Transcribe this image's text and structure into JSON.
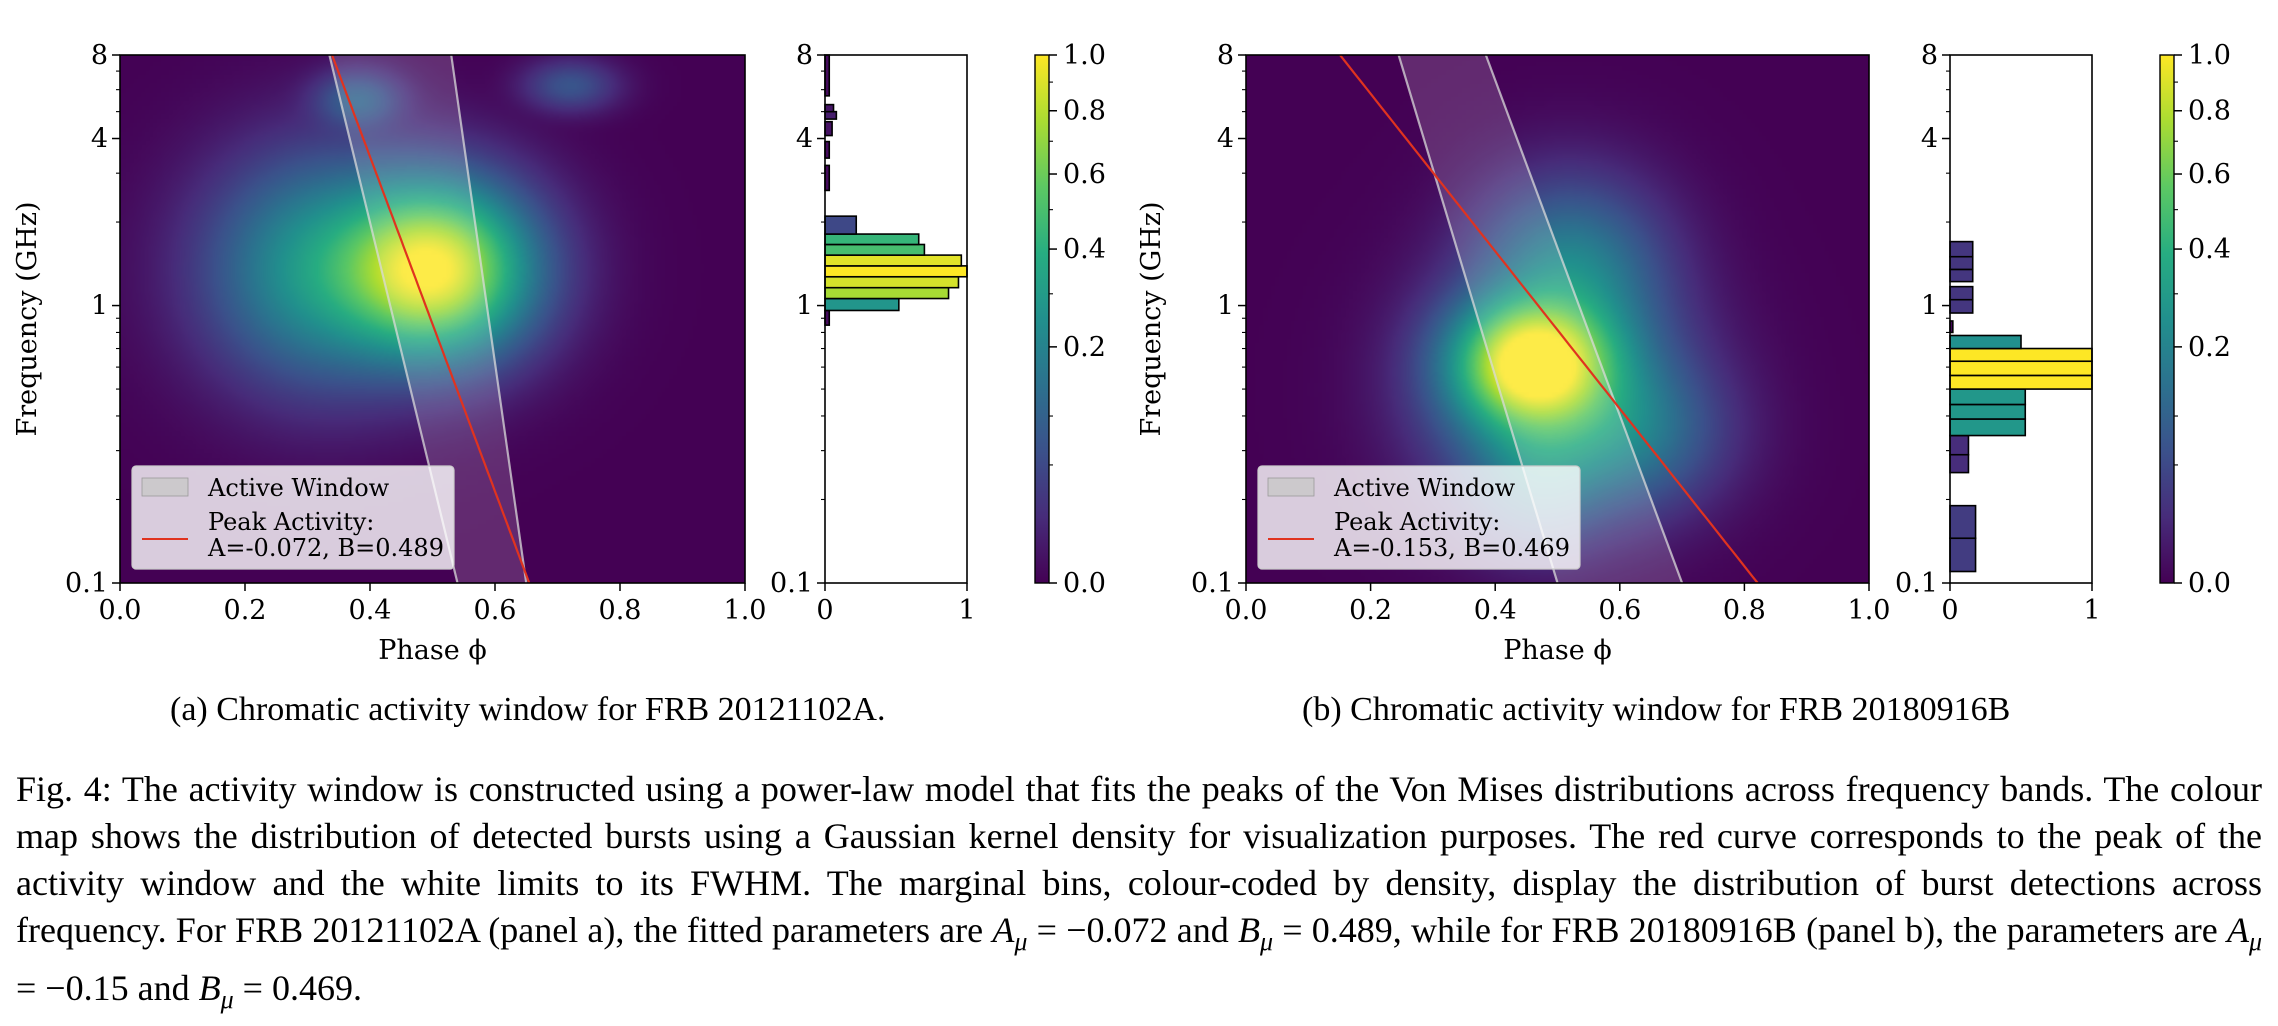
{
  "chart_data": [
    {
      "panel": "a",
      "type": "heatmap",
      "xlabel": "Phase ϕ",
      "ylabel": "Frequency (GHz)",
      "xlim": [
        0.0,
        1.0
      ],
      "ylim": [
        0.1,
        8
      ],
      "yscale": "log",
      "x_ticks": [
        "0.0",
        "0.2",
        "0.4",
        "0.6",
        "0.8",
        "1.0"
      ],
      "y_ticks": [
        "0.1",
        "1",
        "4",
        "8"
      ],
      "density_blobs": [
        {
          "phase": 0.5,
          "freq_ghz": 1.35,
          "sigma_phase": 0.085,
          "sigma_logf": 0.17,
          "amp": 1.0
        },
        {
          "phase": 0.33,
          "freq_ghz": 1.35,
          "sigma_phase": 0.1,
          "sigma_logf": 0.22,
          "amp": 0.3
        },
        {
          "phase": 0.38,
          "freq_ghz": 5.5,
          "sigma_phase": 0.04,
          "sigma_logf": 0.06,
          "amp": 0.1
        },
        {
          "phase": 0.72,
          "freq_ghz": 6.2,
          "sigma_phase": 0.04,
          "sigma_logf": 0.05,
          "amp": 0.07
        }
      ],
      "peak_curve": {
        "A": -0.072,
        "B": 0.489
      },
      "window_edges": [
        {
          "name": "left",
          "top_phase": 0.335,
          "bottom_phase": 0.54
        },
        {
          "name": "right",
          "top_phase": 0.53,
          "bottom_phase": 0.65
        }
      ],
      "legend": {
        "position": "lower-left",
        "entries": [
          {
            "label": "Active Window",
            "marker": "patch"
          },
          {
            "label": "Peak Activity:",
            "label2": "A=-0.072, B=0.489",
            "marker": "line"
          }
        ]
      },
      "marginal": {
        "xlabel_ticks": [
          "0",
          "1"
        ],
        "y_ticks": [
          "0.1",
          "1",
          "4",
          "8"
        ],
        "bins": [
          {
            "f_lo": 0.85,
            "f_hi": 0.96,
            "value": 0.03
          },
          {
            "f_lo": 0.96,
            "f_hi": 1.06,
            "value": 0.52
          },
          {
            "f_lo": 1.06,
            "f_hi": 1.16,
            "value": 0.87
          },
          {
            "f_lo": 1.16,
            "f_hi": 1.27,
            "value": 0.94
          },
          {
            "f_lo": 1.27,
            "f_hi": 1.39,
            "value": 1.0
          },
          {
            "f_lo": 1.39,
            "f_hi": 1.52,
            "value": 0.96
          },
          {
            "f_lo": 1.52,
            "f_hi": 1.66,
            "value": 0.7
          },
          {
            "f_lo": 1.66,
            "f_hi": 1.81,
            "value": 0.66
          },
          {
            "f_lo": 1.81,
            "f_hi": 2.1,
            "value": 0.22
          },
          {
            "f_lo": 2.6,
            "f_hi": 3.2,
            "value": 0.03
          },
          {
            "f_lo": 3.4,
            "f_hi": 3.9,
            "value": 0.03
          },
          {
            "f_lo": 4.1,
            "f_hi": 4.6,
            "value": 0.05
          },
          {
            "f_lo": 4.7,
            "f_hi": 5.0,
            "value": 0.08
          },
          {
            "f_lo": 5.0,
            "f_hi": 5.3,
            "value": 0.06
          },
          {
            "f_lo": 5.7,
            "f_hi": 8.0,
            "value": 0.03
          }
        ]
      },
      "colorbar": {
        "ticks": [
          "0.0",
          "0.2",
          "0.4",
          "0.6",
          "0.8",
          "1.0"
        ],
        "scale": "sqrt"
      }
    },
    {
      "panel": "b",
      "type": "heatmap",
      "xlabel": "Phase ϕ",
      "ylabel": "Frequency (GHz)",
      "xlim": [
        0.0,
        1.0
      ],
      "ylim": [
        0.1,
        8
      ],
      "yscale": "log",
      "x_ticks": [
        "0.0",
        "0.2",
        "0.4",
        "0.6",
        "0.8",
        "1.0"
      ],
      "y_ticks": [
        "0.1",
        "1",
        "4",
        "8"
      ],
      "density_blobs": [
        {
          "phase": 0.46,
          "freq_ghz": 0.62,
          "sigma_phase": 0.07,
          "sigma_logf": 0.13,
          "amp": 1.0
        },
        {
          "phase": 0.5,
          "freq_ghz": 0.5,
          "sigma_phase": 0.1,
          "sigma_logf": 0.22,
          "amp": 0.35
        },
        {
          "phase": 0.52,
          "freq_ghz": 1.3,
          "sigma_phase": 0.08,
          "sigma_logf": 0.18,
          "amp": 0.2
        },
        {
          "phase": 0.47,
          "freq_ghz": 0.25,
          "sigma_phase": 0.06,
          "sigma_logf": 0.14,
          "amp": 0.12
        },
        {
          "phase": 0.62,
          "freq_ghz": 0.35,
          "sigma_phase": 0.08,
          "sigma_logf": 0.15,
          "amp": 0.12
        }
      ],
      "peak_curve": {
        "A": -0.153,
        "B": 0.469
      },
      "window_edges": [
        {
          "name": "left",
          "top_phase": 0.245,
          "bottom_phase": 0.5
        },
        {
          "name": "right",
          "top_phase": 0.385,
          "bottom_phase": 0.7
        }
      ],
      "legend": {
        "position": "lower-left",
        "entries": [
          {
            "label": "Active Window",
            "marker": "patch"
          },
          {
            "label": "Peak Activity:",
            "label2": "A=-0.153, B=0.469",
            "marker": "line"
          }
        ]
      },
      "marginal": {
        "xlabel_ticks": [
          "0",
          "1"
        ],
        "y_ticks": [
          "0.1",
          "1",
          "4",
          "8"
        ],
        "bins": [
          {
            "f_lo": 0.11,
            "f_hi": 0.145,
            "value": 0.18
          },
          {
            "f_lo": 0.145,
            "f_hi": 0.19,
            "value": 0.18
          },
          {
            "f_lo": 0.25,
            "f_hi": 0.29,
            "value": 0.13
          },
          {
            "f_lo": 0.29,
            "f_hi": 0.34,
            "value": 0.13
          },
          {
            "f_lo": 0.34,
            "f_hi": 0.39,
            "value": 0.53
          },
          {
            "f_lo": 0.39,
            "f_hi": 0.44,
            "value": 0.53
          },
          {
            "f_lo": 0.44,
            "f_hi": 0.5,
            "value": 0.53
          },
          {
            "f_lo": 0.5,
            "f_hi": 0.56,
            "value": 1.0
          },
          {
            "f_lo": 0.56,
            "f_hi": 0.63,
            "value": 1.0
          },
          {
            "f_lo": 0.63,
            "f_hi": 0.7,
            "value": 1.0
          },
          {
            "f_lo": 0.7,
            "f_hi": 0.78,
            "value": 0.5
          },
          {
            "f_lo": 0.8,
            "f_hi": 0.88,
            "value": 0.02
          },
          {
            "f_lo": 0.94,
            "f_hi": 1.05,
            "value": 0.16
          },
          {
            "f_lo": 1.05,
            "f_hi": 1.17,
            "value": 0.16
          },
          {
            "f_lo": 1.22,
            "f_hi": 1.35,
            "value": 0.16
          },
          {
            "f_lo": 1.35,
            "f_hi": 1.5,
            "value": 0.16
          },
          {
            "f_lo": 1.5,
            "f_hi": 1.7,
            "value": 0.16
          }
        ]
      },
      "colorbar": {
        "ticks": [
          "0.0",
          "0.2",
          "0.4",
          "0.6",
          "0.8",
          "1.0"
        ],
        "scale": "sqrt"
      }
    }
  ],
  "captions": {
    "panel_a": "(a) Chromatic activity window for FRB 20121102A.",
    "panel_b": "(b) Chromatic activity window for FRB 20180916B"
  },
  "figure_caption": {
    "parts": [
      {
        "t": "Fig. 4: The activity window is constructed using a power-law model that fits the peaks of the Von Mises distributions across frequency bands. The colour map shows the distribution of detected bursts using a Gaussian kernel density for visualization purposes. The red curve corresponds to the peak of the activity window and the white limits to its FWHM. The marginal bins, colour-coded by density, display the distribution of burst detections across frequency. For FRB  20121102A (panel a), the fitted parameters are "
      },
      {
        "t": "A",
        "i": true
      },
      {
        "t": "μ",
        "sub": true
      },
      {
        "t": " = −0.072 and "
      },
      {
        "t": "B",
        "i": true
      },
      {
        "t": "μ",
        "sub": true
      },
      {
        "t": " = 0.489, while for FRB 20180916B (panel b), the parameters are "
      },
      {
        "t": "A",
        "i": true
      },
      {
        "t": "μ",
        "sub": true
      },
      {
        "t": " = −0.15 and "
      },
      {
        "t": "B",
        "i": true
      },
      {
        "t": "μ",
        "sub": true
      },
      {
        "t": " = 0.469."
      }
    ]
  },
  "colors": {
    "peak_curve": "#e0331f",
    "window_edge": "#d9d9d9",
    "legend_bg": "#ffffff",
    "axis": "#000000"
  }
}
